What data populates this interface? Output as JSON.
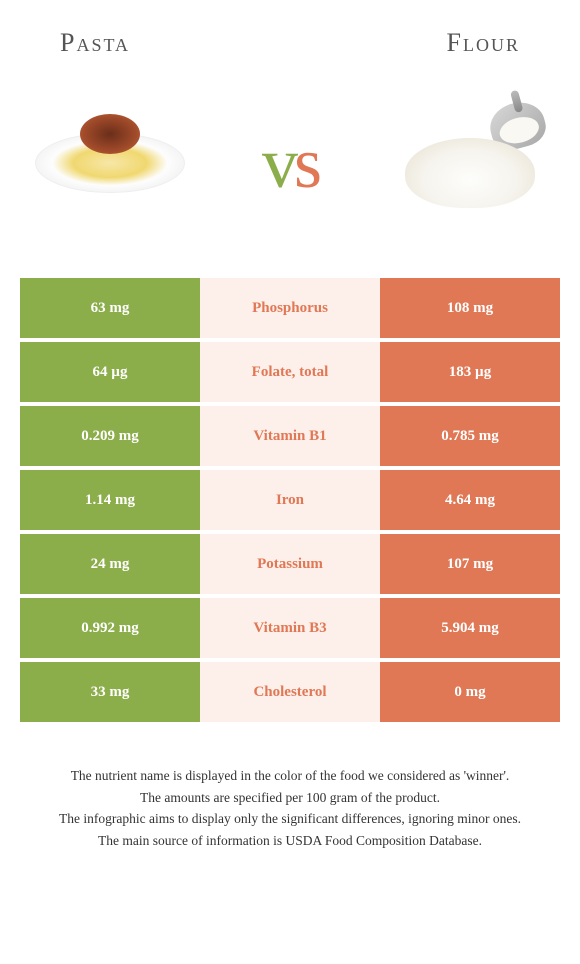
{
  "header": {
    "left_title": "Pasta",
    "right_title": "Flour"
  },
  "vs": {
    "v": "v",
    "s": "s"
  },
  "colors": {
    "left": "#8bad4a",
    "right": "#e07856",
    "mid_bg": "#fdefe9"
  },
  "rows": [
    {
      "left": "63 mg",
      "label": "Phosphorus",
      "right": "108 mg",
      "winner": "right"
    },
    {
      "left": "64 µg",
      "label": "Folate, total",
      "right": "183 µg",
      "winner": "right"
    },
    {
      "left": "0.209 mg",
      "label": "Vitamin B1",
      "right": "0.785 mg",
      "winner": "right"
    },
    {
      "left": "1.14 mg",
      "label": "Iron",
      "right": "4.64 mg",
      "winner": "right"
    },
    {
      "left": "24 mg",
      "label": "Potassium",
      "right": "107 mg",
      "winner": "right"
    },
    {
      "left": "0.992 mg",
      "label": "Vitamin B3",
      "right": "5.904 mg",
      "winner": "right"
    },
    {
      "left": "33 mg",
      "label": "Cholesterol",
      "right": "0 mg",
      "winner": "right"
    }
  ],
  "footer": {
    "line1": "The nutrient name is displayed in the color of the food we considered as 'winner'.",
    "line2": "The amounts are specified per 100 gram of the product.",
    "line3": "The infographic aims to display only the significant differences, ignoring minor ones.",
    "line4": "The main source of information is USDA Food Composition Database."
  }
}
